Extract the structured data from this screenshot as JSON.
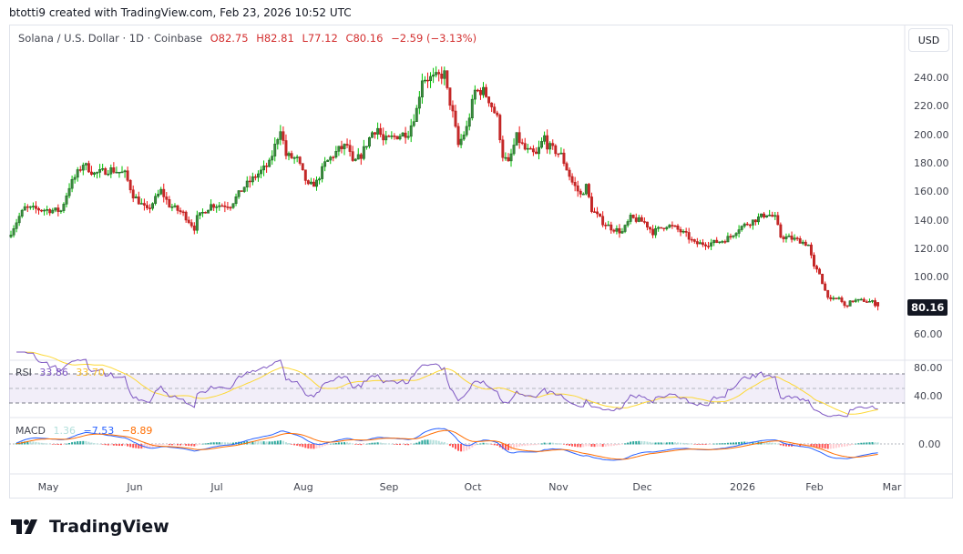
{
  "credit": "btotti9 created with TradingView.com, Feb 23, 2026 10:52 UTC",
  "symbol": {
    "name": "Solana / U.S. Dollar · 1D · Coinbase",
    "open": "O82.75",
    "high": "H82.81",
    "low": "L77.12",
    "close": "C80.16",
    "change": "−2.59 (−3.13%)"
  },
  "currency_button": "USD",
  "last_price": "80.16",
  "price_axis": [
    "240.00",
    "220.00",
    "200.00",
    "180.00",
    "160.00",
    "140.00",
    "120.00",
    "100.00",
    "60.00"
  ],
  "rsi": {
    "label": "RSI",
    "value": "33.86",
    "ma": "33.70",
    "axis": [
      "80.00",
      "40.00"
    ],
    "color": "#7e57c2",
    "ma_color": "#fdd835"
  },
  "macd": {
    "label": "MACD",
    "hist": "1.36",
    "macd": "−7.53",
    "signal": "−8.89",
    "axis": [
      "0.00"
    ],
    "macd_color": "#2962ff",
    "signal_color": "#ff6d00"
  },
  "time_axis": [
    "May",
    "Jun",
    "Jul",
    "Aug",
    "Sep",
    "Oct",
    "Nov",
    "Dec",
    "2026",
    "Feb",
    "Mar"
  ],
  "brand": "TradingView",
  "colors": {
    "up": "#388e3c",
    "down": "#c62828"
  },
  "chart_data": {
    "type": "candlestick",
    "title": "Solana / U.S. Dollar · 1D · Coinbase",
    "ylim": [
      50,
      255
    ],
    "approx_closes_by_day": [
      [
        0,
        132
      ],
      [
        3,
        143
      ],
      [
        5,
        149
      ],
      [
        10,
        148
      ],
      [
        18,
        147
      ],
      [
        21,
        164
      ],
      [
        26,
        180
      ],
      [
        30,
        173
      ],
      [
        36,
        176
      ],
      [
        41,
        173
      ],
      [
        44,
        158
      ],
      [
        49,
        147
      ],
      [
        54,
        161
      ],
      [
        57,
        151
      ],
      [
        62,
        145
      ],
      [
        66,
        135
      ],
      [
        67,
        142
      ],
      [
        72,
        151
      ],
      [
        79,
        151
      ],
      [
        84,
        164
      ],
      [
        89,
        173
      ],
      [
        93,
        180
      ],
      [
        97,
        205
      ],
      [
        99,
        186
      ],
      [
        103,
        183
      ],
      [
        107,
        164
      ],
      [
        110,
        167
      ],
      [
        113,
        180
      ],
      [
        118,
        190
      ],
      [
        121,
        193
      ],
      [
        123,
        180
      ],
      [
        126,
        186
      ],
      [
        130,
        202
      ],
      [
        132,
        205
      ],
      [
        134,
        196
      ],
      [
        138,
        199
      ],
      [
        143,
        202
      ],
      [
        146,
        218
      ],
      [
        148,
        240
      ],
      [
        152,
        240
      ],
      [
        156,
        243
      ],
      [
        157,
        231
      ],
      [
        159,
        215
      ],
      [
        161,
        193
      ],
      [
        164,
        205
      ],
      [
        167,
        231
      ],
      [
        170,
        231
      ],
      [
        172,
        225
      ],
      [
        175,
        212
      ],
      [
        177,
        186
      ],
      [
        179,
        180
      ],
      [
        182,
        199
      ],
      [
        185,
        190
      ],
      [
        189,
        186
      ],
      [
        192,
        199
      ],
      [
        193,
        193
      ],
      [
        198,
        186
      ],
      [
        202,
        167
      ],
      [
        205,
        158
      ],
      [
        207,
        164
      ],
      [
        209,
        148
      ],
      [
        213,
        139
      ],
      [
        216,
        135
      ],
      [
        220,
        132
      ],
      [
        223,
        142
      ],
      [
        228,
        139
      ],
      [
        231,
        132
      ],
      [
        236,
        137
      ],
      [
        239,
        135
      ],
      [
        243,
        130
      ],
      [
        246,
        124
      ],
      [
        251,
        124
      ],
      [
        256,
        126
      ],
      [
        259,
        129
      ],
      [
        262,
        135
      ],
      [
        266,
        139
      ],
      [
        269,
        142
      ],
      [
        272,
        145
      ],
      [
        275,
        142
      ],
      [
        277,
        129
      ],
      [
        280,
        128
      ],
      [
        284,
        126
      ],
      [
        287,
        123
      ],
      [
        289,
        107
      ],
      [
        291,
        103
      ],
      [
        293,
        91
      ],
      [
        295,
        84
      ],
      [
        298,
        86
      ],
      [
        300,
        80
      ],
      [
        303,
        84
      ],
      [
        307,
        84
      ],
      [
        310,
        83
      ],
      [
        312,
        80.16
      ]
    ],
    "last": {
      "open": 82.75,
      "high": 82.81,
      "low": 77.12,
      "close": 80.16
    }
  }
}
